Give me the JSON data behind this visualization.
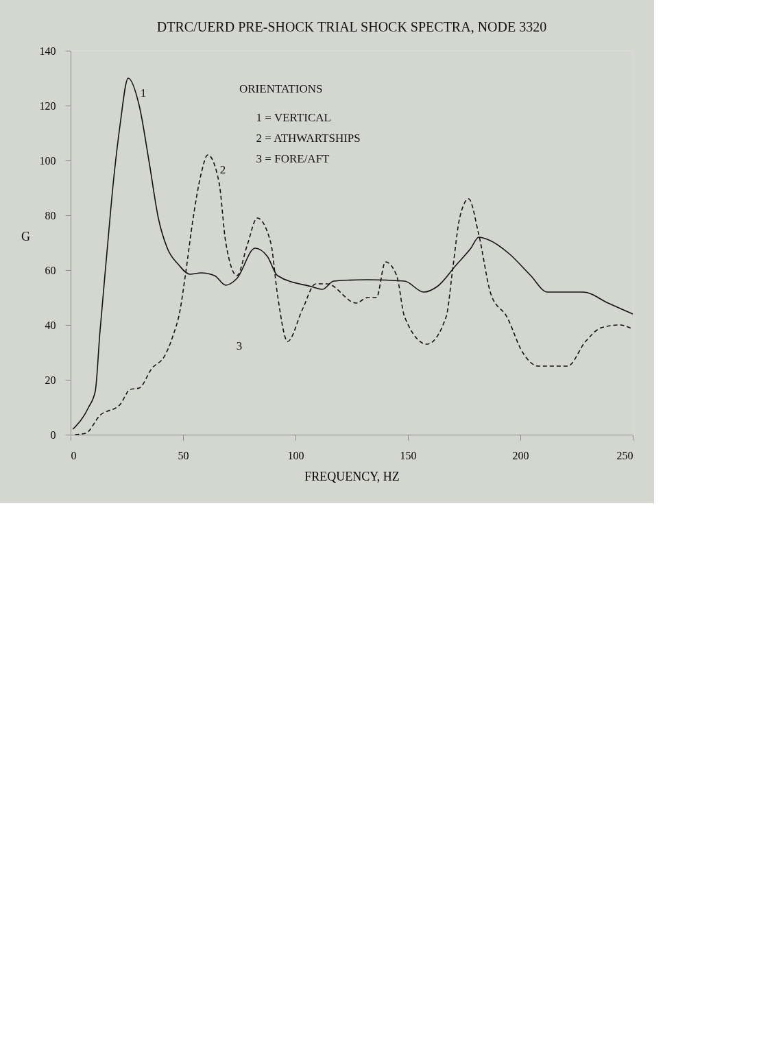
{
  "chart_data": {
    "type": "line",
    "title": "DTRC/UERD PRE-SHOCK TRIAL SHOCK SPECTRA, NODE 3320",
    "xlabel": "FREQUENCY, HZ",
    "ylabel": "G",
    "xlim": [
      0,
      250
    ],
    "xticks": [
      0,
      50,
      100,
      150,
      200,
      250
    ],
    "ylim": [
      0,
      140
    ],
    "yticks": [
      0,
      20,
      40,
      60,
      80,
      100,
      120,
      140
    ],
    "grid": false,
    "series": [
      {
        "name": "1",
        "color": "#111111",
        "line_style": "solid",
        "x": [
          1,
          8,
          11,
          13,
          16,
          19,
          22,
          25.6,
          30.5,
          35,
          39,
          43,
          48,
          53,
          58,
          64,
          69,
          74,
          82,
          87.5,
          92,
          107,
          112,
          117,
          132,
          148.5,
          157,
          163,
          171.6,
          178,
          181.5,
          186,
          195,
          204.6,
          212,
          228,
          239,
          250
        ],
        "values": [
          2,
          10,
          16,
          37,
          65,
          92,
          113,
          130,
          120,
          99,
          79,
          68,
          62,
          58.5,
          59,
          58,
          54.5,
          57,
          68,
          65,
          58,
          54,
          53,
          56,
          56.5,
          56,
          52,
          54,
          62,
          68,
          72,
          71,
          66,
          58,
          52,
          52,
          48,
          44
        ]
      },
      {
        "name": "2",
        "color": "#111111",
        "line_style": "dashed",
        "x": [
          2,
          6.7,
          13,
          22,
          26.5,
          30.5,
          36,
          42,
          45.5,
          48.7,
          51,
          54.5,
          58,
          61,
          66,
          69,
          74,
          78.5,
          83,
          89,
          92,
          96.5,
          103,
          109,
          114,
          127,
          132,
          136,
          140,
          145,
          148.5,
          158.5,
          167,
          170,
          173,
          177,
          181.5,
          187,
          194,
          201,
          208,
          221,
          229,
          236,
          244,
          250
        ],
        "values": [
          0,
          0.5,
          7,
          11,
          16.5,
          17,
          24,
          29,
          36,
          45.5,
          58,
          79,
          95,
          102,
          92,
          70,
          58,
          69,
          79,
          70,
          51,
          34,
          45.5,
          55,
          55,
          48,
          50,
          50,
          63,
          58,
          43,
          33,
          43,
          61,
          79,
          86,
          73,
          51,
          43,
          30,
          25,
          25,
          34,
          39,
          40,
          38.5
        ]
      }
    ],
    "annotations": [
      "3",
      "ORIENTATIONS",
      "1 = VERTICAL",
      "2 = ATHWARTSHIPS",
      "3 = FORE/AFT"
    ]
  }
}
